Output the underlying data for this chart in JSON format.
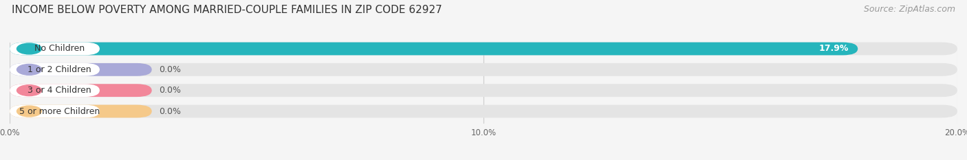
{
  "title": "INCOME BELOW POVERTY AMONG MARRIED-COUPLE FAMILIES IN ZIP CODE 62927",
  "source": "Source: ZipAtlas.com",
  "categories": [
    "No Children",
    "1 or 2 Children",
    "3 or 4 Children",
    "5 or more Children"
  ],
  "values": [
    17.9,
    0.0,
    0.0,
    0.0
  ],
  "bar_colors": [
    "#26b5bc",
    "#a9a9d8",
    "#f2879a",
    "#f5c98a"
  ],
  "bg_color": "#f5f5f5",
  "bar_bg_color": "#e4e4e4",
  "xlim": [
    0,
    20
  ],
  "xticks": [
    0.0,
    10.0,
    20.0
  ],
  "xtick_labels": [
    "0.0%",
    "10.0%",
    "20.0%"
  ],
  "value_labels": [
    "17.9%",
    "0.0%",
    "0.0%",
    "0.0%"
  ],
  "zero_bar_extent": 3.0,
  "title_fontsize": 11,
  "source_fontsize": 9,
  "label_fontsize": 9,
  "value_fontsize": 9
}
